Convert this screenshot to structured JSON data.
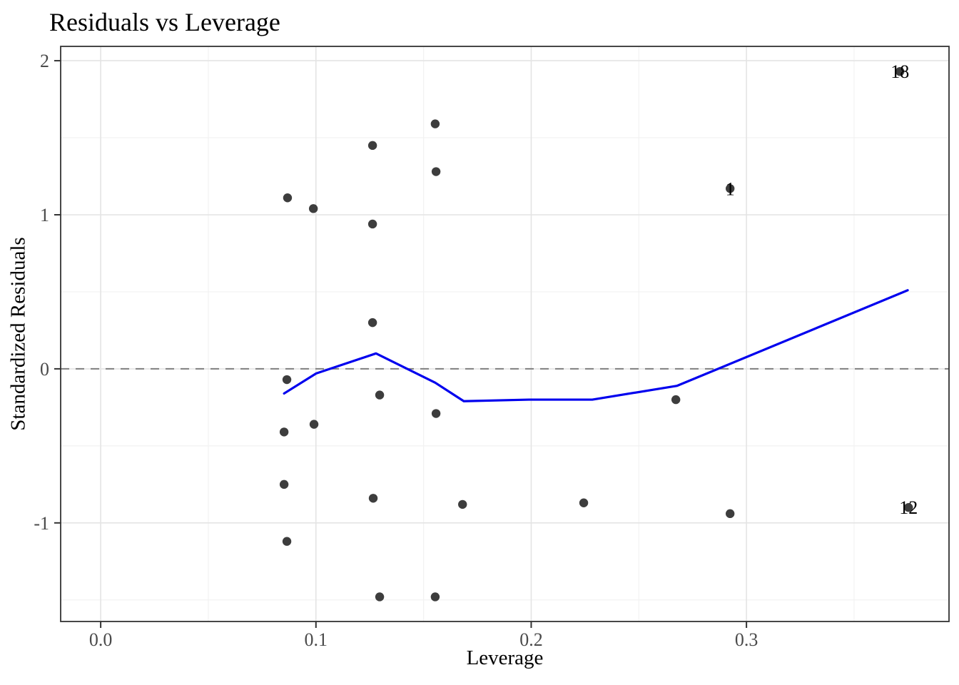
{
  "chart_data": {
    "type": "scatter",
    "title": "Residuals vs Leverage",
    "xlabel": "Leverage",
    "ylabel": "Standardized Residuals",
    "xlim": [
      -0.0186,
      0.3941
    ],
    "ylim": [
      -1.64,
      2.093
    ],
    "grid": "major and minor, light grey on white, dark panel border",
    "x_ticks": {
      "values": [
        0.0,
        0.1,
        0.2,
        0.3
      ],
      "labels": [
        "0.0",
        "0.1",
        "0.2",
        "0.3"
      ],
      "minor": [
        0.05,
        0.15,
        0.25,
        0.35
      ]
    },
    "y_ticks": {
      "values": [
        -1,
        0,
        1,
        2
      ],
      "labels": [
        "-1",
        "0",
        "1",
        "2"
      ],
      "minor": [
        -1.5,
        -0.5,
        0.5,
        1.5
      ]
    },
    "zero_reference_line_y": 0,
    "points": [
      {
        "x": 0.0868,
        "y": 1.11
      },
      {
        "x": 0.0988,
        "y": 1.04
      },
      {
        "x": 0.1263,
        "y": 1.45
      },
      {
        "x": 0.1554,
        "y": 1.59
      },
      {
        "x": 0.1558,
        "y": 1.28
      },
      {
        "x": 0.1263,
        "y": 0.94
      },
      {
        "x": 0.1263,
        "y": 0.3
      },
      {
        "x": 0.2924,
        "y": 1.17,
        "label": "1"
      },
      {
        "x": 0.3713,
        "y": 1.93,
        "label": "18"
      },
      {
        "x": 0.0865,
        "y": -0.07
      },
      {
        "x": 0.1296,
        "y": -0.17
      },
      {
        "x": 0.1558,
        "y": -0.29
      },
      {
        "x": 0.0991,
        "y": -0.36
      },
      {
        "x": 0.0852,
        "y": -0.41
      },
      {
        "x": 0.2672,
        "y": -0.2
      },
      {
        "x": 0.0852,
        "y": -0.75
      },
      {
        "x": 0.1266,
        "y": -0.84
      },
      {
        "x": 0.1681,
        "y": -0.88
      },
      {
        "x": 0.2244,
        "y": -0.87
      },
      {
        "x": 0.2924,
        "y": -0.94
      },
      {
        "x": 0.3753,
        "y": -0.9,
        "label": "12"
      },
      {
        "x": 0.0865,
        "y": -1.12
      },
      {
        "x": 0.1296,
        "y": -1.48
      },
      {
        "x": 0.1554,
        "y": -1.48
      }
    ],
    "smooth_line": [
      [
        0.0852,
        -0.16
      ],
      [
        0.1001,
        -0.03
      ],
      [
        0.1279,
        0.1
      ],
      [
        0.1554,
        -0.09
      ],
      [
        0.1687,
        -0.21
      ],
      [
        0.199,
        -0.2
      ],
      [
        0.2284,
        -0.2
      ],
      [
        0.2678,
        -0.11
      ],
      [
        0.3749,
        0.51
      ]
    ],
    "colors": {
      "point": "#3d3d3d",
      "smooth_line": "#0000ee",
      "zero_line": "#7f7f7f",
      "grid_major": "#e4e4e4",
      "grid_minor": "#f2f2f2",
      "panel_border": "#333333",
      "tick_mark": "#333333",
      "tick_label": "#4a4a4a",
      "point_label": "#000000",
      "background": "#ffffff"
    }
  }
}
